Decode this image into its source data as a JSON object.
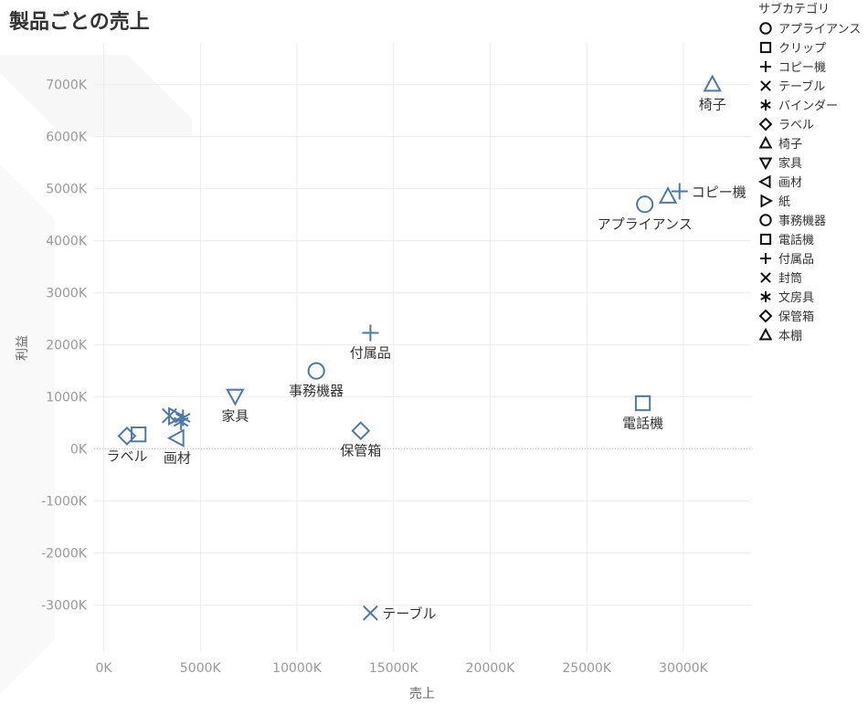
{
  "title": "製品ごとの売上",
  "legend": {
    "title": "サブカテゴリ",
    "items": [
      {
        "label": "アプライアンス",
        "shape": "circle"
      },
      {
        "label": "クリップ",
        "shape": "square"
      },
      {
        "label": "コピー機",
        "shape": "plus"
      },
      {
        "label": "テーブル",
        "shape": "x"
      },
      {
        "label": "バインダー",
        "shape": "asterisk"
      },
      {
        "label": "ラベル",
        "shape": "diamond"
      },
      {
        "label": "椅子",
        "shape": "triangle-up"
      },
      {
        "label": "家具",
        "shape": "triangle-down"
      },
      {
        "label": "画材",
        "shape": "triangle-left"
      },
      {
        "label": "紙",
        "shape": "triangle-right"
      },
      {
        "label": "事務機器",
        "shape": "circle"
      },
      {
        "label": "電話機",
        "shape": "square"
      },
      {
        "label": "付属品",
        "shape": "plus"
      },
      {
        "label": "封筒",
        "shape": "x"
      },
      {
        "label": "文房具",
        "shape": "asterisk"
      },
      {
        "label": "保管箱",
        "shape": "diamond"
      },
      {
        "label": "本棚",
        "shape": "triangle-up"
      }
    ]
  },
  "chart_data": {
    "type": "scatter",
    "xlabel": "売上",
    "ylabel": "利益",
    "xlim": [
      -500,
      33500
    ],
    "ylim": [
      -3900,
      7800
    ],
    "x_ticks": [
      0,
      5000,
      10000,
      15000,
      20000,
      25000,
      30000
    ],
    "x_tick_labels": [
      "0K",
      "5000K",
      "10000K",
      "15000K",
      "20000K",
      "25000K",
      "30000K"
    ],
    "y_ticks": [
      -3000,
      -2000,
      -1000,
      0,
      1000,
      2000,
      3000,
      4000,
      5000,
      6000,
      7000
    ],
    "y_tick_labels": [
      "-3000K",
      "-2000K",
      "-1000K",
      "0K",
      "1000K",
      "2000K",
      "3000K",
      "4000K",
      "5000K",
      "6000K",
      "7000K"
    ],
    "grid": true,
    "marker_color": "#4e79a7",
    "points": [
      {
        "name": "アプライアンス",
        "shape": "circle",
        "x": 28000,
        "y": 4700,
        "label": "アプライアンス",
        "label_pos": "below"
      },
      {
        "name": "クリップ",
        "shape": "square",
        "x": 1800,
        "y": 280,
        "label": "",
        "label_pos": "none"
      },
      {
        "name": "コピー機",
        "shape": "plus",
        "x": 29800,
        "y": 4950,
        "label": "コピー機",
        "label_pos": "right"
      },
      {
        "name": "テーブル",
        "shape": "x",
        "x": 13800,
        "y": -3150,
        "label": "テーブル",
        "label_pos": "right"
      },
      {
        "name": "バインダー",
        "shape": "asterisk",
        "x": 4100,
        "y": 600,
        "label": "",
        "label_pos": "none"
      },
      {
        "name": "ラベル",
        "shape": "diamond",
        "x": 1200,
        "y": 250,
        "label": "ラベル",
        "label_pos": "below"
      },
      {
        "name": "椅子",
        "shape": "triangle-up",
        "x": 31500,
        "y": 7000,
        "label": "椅子",
        "label_pos": "below"
      },
      {
        "name": "家具",
        "shape": "triangle-down",
        "x": 6800,
        "y": 1020,
        "label": "家具",
        "label_pos": "below"
      },
      {
        "name": "画材",
        "shape": "triangle-left",
        "x": 3800,
        "y": 210,
        "label": "画材",
        "label_pos": "below"
      },
      {
        "name": "紙",
        "shape": "triangle-right",
        "x": 3700,
        "y": 630,
        "label": "",
        "label_pos": "none"
      },
      {
        "name": "事務機器",
        "shape": "circle",
        "x": 11000,
        "y": 1500,
        "label": "事務機器",
        "label_pos": "below"
      },
      {
        "name": "電話機",
        "shape": "square",
        "x": 27900,
        "y": 880,
        "label": "電話機",
        "label_pos": "below"
      },
      {
        "name": "付属品",
        "shape": "plus",
        "x": 13800,
        "y": 2230,
        "label": "付属品",
        "label_pos": "below"
      },
      {
        "name": "封筒",
        "shape": "x",
        "x": 3400,
        "y": 640,
        "label": "",
        "label_pos": "none"
      },
      {
        "name": "文房具",
        "shape": "asterisk",
        "x": 4000,
        "y": 520,
        "label": "",
        "label_pos": "none"
      },
      {
        "name": "保管箱",
        "shape": "diamond",
        "x": 13300,
        "y": 350,
        "label": "保管箱",
        "label_pos": "below"
      },
      {
        "name": "本棚",
        "shape": "triangle-up",
        "x": 29200,
        "y": 4850,
        "label": "",
        "label_pos": "none"
      }
    ]
  }
}
